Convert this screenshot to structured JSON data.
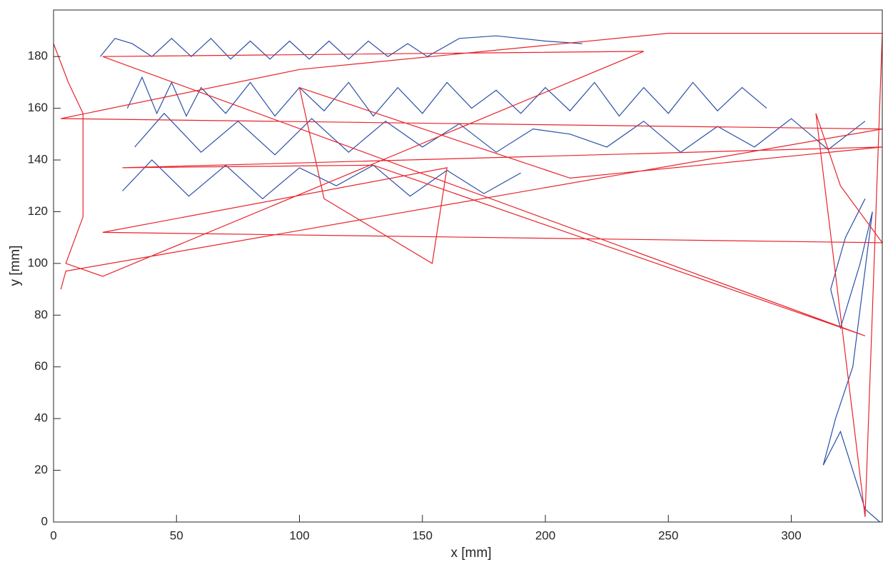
{
  "chart_data": {
    "type": "line",
    "xlabel": "x [mm]",
    "ylabel": "y [mm]",
    "xlim": [
      0,
      337
    ],
    "ylim": [
      0,
      198
    ],
    "xticks": [
      0,
      50,
      100,
      150,
      200,
      250,
      300
    ],
    "yticks": [
      0,
      20,
      40,
      60,
      80,
      100,
      120,
      140,
      160,
      180
    ],
    "series": [
      {
        "color": "#2b4fa8",
        "x": [
          19,
          25,
          32,
          40,
          48,
          56,
          64,
          72,
          80,
          88,
          96,
          104,
          112,
          120,
          128,
          136,
          144,
          152,
          165,
          180,
          200,
          215,
          null,
          30,
          36,
          42,
          48,
          54,
          60,
          70,
          80,
          90,
          100,
          110,
          120,
          130,
          140,
          150,
          160,
          170,
          180,
          190,
          200,
          210,
          220,
          230,
          240,
          250,
          260,
          270,
          280,
          290,
          null,
          33,
          45,
          60,
          75,
          90,
          105,
          120,
          135,
          150,
          165,
          180,
          195,
          210,
          225,
          240,
          255,
          270,
          285,
          300,
          315,
          330,
          null,
          28,
          40,
          55,
          70,
          85,
          100,
          115,
          130,
          145,
          160,
          175,
          190,
          null,
          330,
          322,
          316,
          320,
          328,
          333,
          325,
          318,
          313,
          320,
          330,
          336
        ],
        "values": [
          180,
          187,
          185,
          180,
          187,
          180,
          187,
          179,
          186,
          179,
          186,
          179,
          186,
          179,
          186,
          180,
          185,
          180,
          187,
          188,
          186,
          185,
          null,
          160,
          172,
          158,
          170,
          157,
          168,
          158,
          170,
          157,
          168,
          159,
          170,
          157,
          168,
          158,
          170,
          160,
          167,
          158,
          168,
          159,
          170,
          157,
          168,
          158,
          170,
          159,
          168,
          160,
          null,
          145,
          158,
          143,
          155,
          142,
          156,
          143,
          155,
          145,
          154,
          143,
          152,
          150,
          145,
          155,
          143,
          153,
          145,
          156,
          144,
          155,
          null,
          128,
          140,
          126,
          138,
          125,
          137,
          130,
          138,
          126,
          136,
          127,
          135,
          null,
          125,
          110,
          90,
          75,
          100,
          120,
          60,
          40,
          22,
          35,
          5,
          0
        ]
      },
      {
        "color": "#e8232a",
        "x": [
          0,
          6,
          12,
          12,
          5,
          20,
          240,
          20,
          330,
          130,
          28,
          337,
          210,
          100,
          110,
          154,
          160,
          20,
          337,
          320,
          310,
          330,
          337,
          250,
          100,
          3,
          337,
          5,
          3
        ],
        "values": [
          185,
          170,
          158,
          118,
          100,
          95,
          182,
          180,
          72,
          138,
          137,
          145,
          133,
          168,
          125,
          100,
          137,
          112,
          108,
          130,
          158,
          2,
          189,
          189,
          175,
          156,
          152,
          97,
          90
        ]
      }
    ]
  }
}
